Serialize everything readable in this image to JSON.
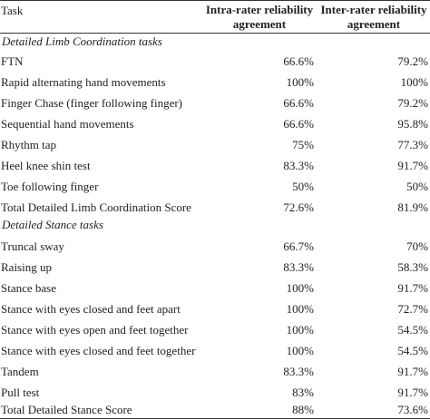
{
  "header": {
    "task": "Task",
    "intra_line1": "Intra-rater reliability",
    "intra_line2": "agreement",
    "inter_line1": "Inter-rater reliability",
    "inter_line2": "agreement"
  },
  "sections": [
    {
      "title": "Detailed Limb Coordination tasks",
      "rows": [
        {
          "task": "FTN",
          "intra": "66.6%",
          "inter": "79.2%"
        },
        {
          "task": "Rapid alternating hand movements",
          "intra": "100%",
          "inter": "100%"
        },
        {
          "task": "Finger Chase (finger following finger)",
          "intra": "66.6%",
          "inter": "79.2%"
        },
        {
          "task": "Sequential hand movements",
          "intra": "66.6%",
          "inter": "95.8%"
        },
        {
          "task": "Rhythm tap",
          "intra": "75%",
          "inter": "77.3%"
        },
        {
          "task": "Heel knee shin test",
          "intra": "83.3%",
          "inter": "91.7%"
        },
        {
          "task": "Toe following finger",
          "intra": "50%",
          "inter": "50%"
        },
        {
          "task": "Total Detailed Limb Coordination Score",
          "intra": "72.6%",
          "inter": "81.9%"
        }
      ]
    },
    {
      "title": "Detailed Stance tasks",
      "rows": [
        {
          "task": "Truncal sway",
          "intra": "66.7%",
          "inter": "70%"
        },
        {
          "task": "Raising up",
          "intra": "83.3%",
          "inter": "58.3%"
        },
        {
          "task": "Stance base",
          "intra": "100%",
          "inter": "91.7%"
        },
        {
          "task": "Stance with eyes closed and feet apart",
          "intra": "100%",
          "inter": "72.7%"
        },
        {
          "task": "Stance with eyes open and feet together",
          "intra": "100%",
          "inter": "54.5%"
        },
        {
          "task": "Stance with eyes closed and feet together",
          "intra": "100%",
          "inter": "54.5%"
        },
        {
          "task": "Tandem",
          "intra": "83.3%",
          "inter": "91.7%"
        },
        {
          "task": "Pull test",
          "intra": "83%",
          "inter": "91.7%"
        },
        {
          "task": "Total Detailed Stance Score",
          "intra": "88%",
          "inter": "73.6%"
        }
      ]
    }
  ]
}
